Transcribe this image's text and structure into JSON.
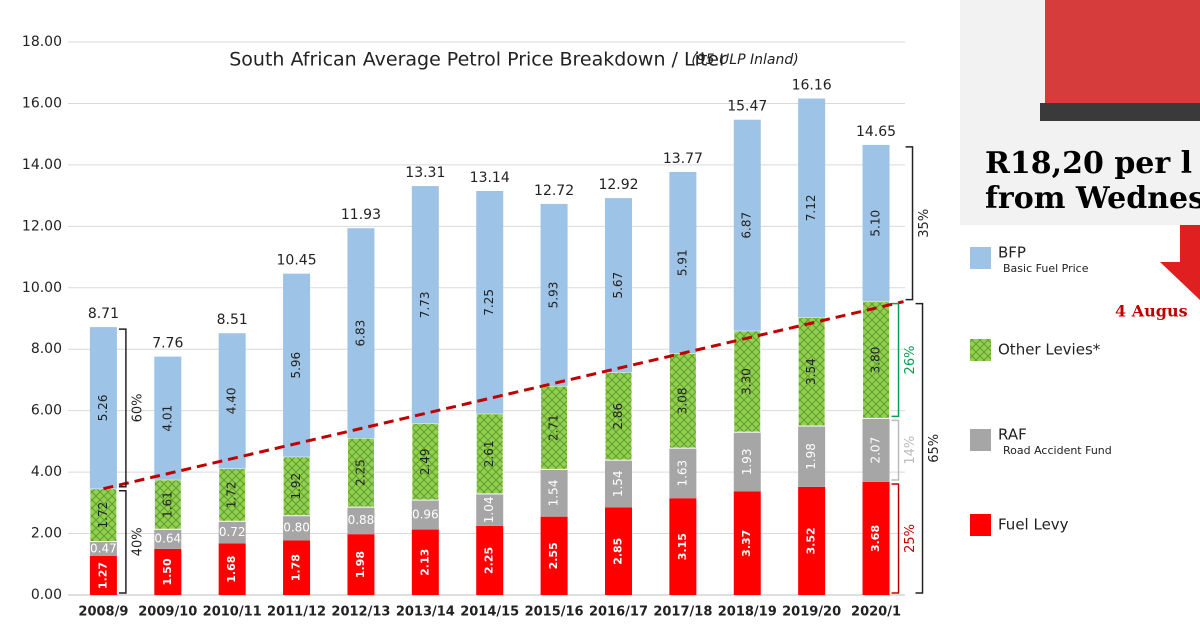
{
  "chart_data": {
    "type": "stacked-bar",
    "title": "South African Average Petrol Price Breakdown / Liter",
    "subtitle": "(95 ULP Inland)",
    "categories": [
      "2008/9",
      "2009/10",
      "2010/11",
      "2011/12",
      "2012/13",
      "2013/14",
      "2014/15",
      "2015/16",
      "2016/17",
      "2017/18",
      "2018/19",
      "2019/20",
      "2020/1"
    ],
    "series": [
      {
        "name": "Fuel Levy",
        "color": "#ff0000",
        "values": [
          1.27,
          1.5,
          1.68,
          1.78,
          1.98,
          2.13,
          2.25,
          2.55,
          2.85,
          3.15,
          3.37,
          3.52,
          3.68
        ],
        "value_labels": [
          "1.27",
          "1.50",
          "1.68",
          "1.78",
          "1.98",
          "2.13",
          "2.25",
          "2.55",
          "2.85",
          "3.15",
          "3.37",
          "3.52",
          "3.68"
        ]
      },
      {
        "name": "RAF",
        "description": "Road Accident Fund",
        "color": "#a6a6a6",
        "values": [
          0.47,
          0.64,
          0.72,
          0.8,
          0.88,
          0.96,
          1.04,
          1.54,
          1.54,
          1.63,
          1.93,
          1.98,
          2.07
        ],
        "value_labels": [
          "0.47",
          "0.64",
          "0.72",
          "0.80",
          "0.88",
          "0.96",
          "1.04",
          "1.54",
          "1.54",
          "1.63",
          "1.93",
          "1.98",
          "2.07"
        ]
      },
      {
        "name": "Other Levies*",
        "color": "#92d050",
        "values": [
          1.72,
          1.61,
          1.72,
          1.92,
          2.25,
          2.49,
          2.61,
          2.71,
          2.86,
          3.08,
          3.3,
          3.54,
          3.8
        ],
        "value_labels": [
          "1.72",
          "1.61",
          "1.72",
          "1.92",
          "2.25",
          "2.49",
          "2.61",
          "2.71",
          "2.86",
          "3.08",
          "3.30",
          "3.54",
          "3.80"
        ]
      },
      {
        "name": "BFP",
        "description": "Basic Fuel Price",
        "color": "#9dc3e6",
        "values": [
          5.26,
          4.01,
          4.4,
          5.96,
          6.83,
          7.73,
          7.25,
          5.93,
          5.67,
          5.91,
          6.87,
          7.12,
          5.1
        ],
        "value_labels": [
          "5.26",
          "4.01",
          "4.40",
          "5.96",
          "6.83",
          "7.73",
          "7.25",
          "5.93",
          "5.67",
          "5.91",
          "6.87",
          "7.12",
          "5.10"
        ]
      }
    ],
    "total_labels": [
      "8.71",
      "7.76",
      "8.51",
      "10.45",
      "11.93",
      "13.31",
      "13.14",
      "12.72",
      "12.92",
      "13.77",
      "15.47",
      "16.16",
      "14.65"
    ],
    "ylim": [
      0,
      18
    ],
    "yticks": [
      {
        "value": 0,
        "label": "0.00"
      },
      {
        "value": 2,
        "label": "2.00"
      },
      {
        "value": 4,
        "label": "4.00"
      },
      {
        "value": 6,
        "label": "6.00"
      },
      {
        "value": 8,
        "label": "8.00"
      },
      {
        "value": 10,
        "label": "10.00"
      },
      {
        "value": 12,
        "label": "12.00"
      },
      {
        "value": 14,
        "label": "14.00"
      },
      {
        "value": 16,
        "label": "16.00"
      },
      {
        "value": 18,
        "label": "18.00"
      }
    ],
    "grid": true,
    "annotations": [
      "60%",
      "40%",
      "35%",
      "65%",
      "26%",
      "14%",
      "25%"
    ]
  },
  "banner": {
    "line1": "R18,20 per l",
    "line2": "from Wednes",
    "date": "4 Augus"
  }
}
